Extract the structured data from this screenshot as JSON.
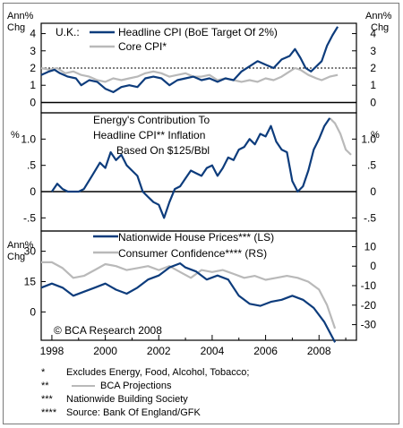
{
  "chart_data": [
    {
      "type": "line",
      "panel": "top",
      "title": "U.K.:",
      "ylabel_left": "Ann% Chg",
      "ylabel_right": "Ann% Chg",
      "ylim": [
        -0.6,
        4.6
      ],
      "yticks": [
        0,
        1,
        2,
        3,
        4
      ],
      "reference_line": {
        "y": 2,
        "style": "dotted"
      },
      "series": [
        {
          "name": "Headline CPI (BoE Target Of 2%)",
          "color": "#0d3c7c",
          "x": [
            1997.6,
            1997.9,
            1998.1,
            1998.3,
            1998.6,
            1998.9,
            1999.1,
            1999.4,
            1999.7,
            2000.0,
            2000.3,
            2000.6,
            2000.9,
            2001.2,
            2001.5,
            2001.8,
            2002.1,
            2002.4,
            2002.7,
            2003.0,
            2003.3,
            2003.6,
            2003.9,
            2004.2,
            2004.5,
            2004.8,
            2005.1,
            2005.4,
            2005.7,
            2006.0,
            2006.3,
            2006.6,
            2006.9,
            2007.1,
            2007.3,
            2007.5,
            2007.7,
            2007.9,
            2008.1,
            2008.3,
            2008.5,
            2008.7
          ],
          "y": [
            1.6,
            1.8,
            1.9,
            1.7,
            1.5,
            1.4,
            1.0,
            1.3,
            1.2,
            0.8,
            0.6,
            0.9,
            1.0,
            0.9,
            1.4,
            1.5,
            1.4,
            1.0,
            1.3,
            1.4,
            1.5,
            1.3,
            1.4,
            1.2,
            1.4,
            1.3,
            1.8,
            2.1,
            2.4,
            2.2,
            2.0,
            2.5,
            2.7,
            3.1,
            2.6,
            2.0,
            1.8,
            2.1,
            2.4,
            3.3,
            3.9,
            4.4
          ]
        },
        {
          "name": "Core CPI*",
          "color": "#b9b9b9",
          "x": [
            1997.6,
            1997.9,
            1998.2,
            1998.5,
            1998.8,
            1999.1,
            1999.4,
            1999.7,
            2000.0,
            2000.3,
            2000.6,
            2000.9,
            2001.2,
            2001.5,
            2001.8,
            2002.1,
            2002.4,
            2002.7,
            2003.0,
            2003.3,
            2003.6,
            2003.9,
            2004.2,
            2004.5,
            2004.8,
            2005.1,
            2005.4,
            2005.7,
            2006.0,
            2006.3,
            2006.6,
            2006.9,
            2007.1,
            2007.3,
            2007.6,
            2007.9,
            2008.1,
            2008.4,
            2008.7
          ],
          "y": [
            2.0,
            1.9,
            2.0,
            1.7,
            1.8,
            1.6,
            1.5,
            1.3,
            1.2,
            1.4,
            1.3,
            1.4,
            1.5,
            1.7,
            1.8,
            1.7,
            1.5,
            1.6,
            1.7,
            1.5,
            1.5,
            1.6,
            1.3,
            1.4,
            1.3,
            1.2,
            1.3,
            1.2,
            1.4,
            1.3,
            1.5,
            1.8,
            2.0,
            1.9,
            1.6,
            1.4,
            1.3,
            1.5,
            1.6
          ]
        }
      ]
    },
    {
      "type": "line",
      "panel": "middle",
      "title": "Energy's Contribution To Headline CPI** Inflation Based On $125/Bbl",
      "ylabel_left": "%",
      "ylabel_right": "%",
      "ylim": [
        -0.75,
        1.5
      ],
      "yticks": [
        -0.5,
        0,
        0.5,
        1.0
      ],
      "ytick_labels": [
        "-.5",
        "0",
        ".5",
        "1.0"
      ],
      "series": [
        {
          "name": "Energy contribution",
          "color": "#0d3c7c",
          "x": [
            1998.0,
            1998.2,
            1998.4,
            1998.6,
            1998.8,
            1999.0,
            1999.2,
            1999.5,
            1999.8,
            2000.0,
            2000.2,
            2000.4,
            2000.6,
            2000.8,
            2001.0,
            2001.2,
            2001.4,
            2001.6,
            2001.8,
            2002.0,
            2002.2,
            2002.4,
            2002.6,
            2002.8,
            2003.0,
            2003.2,
            2003.4,
            2003.6,
            2003.8,
            2004.0,
            2004.2,
            2004.4,
            2004.6,
            2004.8,
            2005.0,
            2005.2,
            2005.4,
            2005.6,
            2005.8,
            2006.0,
            2006.2,
            2006.4,
            2006.6,
            2006.8,
            2007.0,
            2007.2,
            2007.4,
            2007.6,
            2007.8,
            2008.0,
            2008.2,
            2008.4
          ],
          "y": [
            0.0,
            0.15,
            0.05,
            0.0,
            0.0,
            0.0,
            0.05,
            0.3,
            0.55,
            0.45,
            0.75,
            0.6,
            0.7,
            0.5,
            0.4,
            0.3,
            0.0,
            -0.1,
            -0.2,
            -0.25,
            -0.5,
            -0.2,
            0.05,
            0.1,
            0.25,
            0.4,
            0.35,
            0.3,
            0.45,
            0.5,
            0.3,
            0.45,
            0.65,
            0.6,
            0.8,
            0.85,
            1.0,
            0.9,
            1.1,
            1.05,
            1.25,
            0.95,
            0.8,
            0.75,
            0.2,
            0.0,
            0.1,
            0.4,
            0.8,
            1.0,
            1.25,
            1.4
          ]
        },
        {
          "name": "BCA Projections",
          "color": "#b9b9b9",
          "x": [
            2008.4,
            2008.6,
            2008.8,
            2009.0,
            2009.2
          ],
          "y": [
            1.4,
            1.3,
            1.1,
            0.8,
            0.7
          ]
        }
      ]
    },
    {
      "type": "line",
      "panel": "bottom",
      "ylabel_left": "Ann% Chg",
      "ylim_left": [
        -14,
        40
      ],
      "yticks_left": [
        0,
        15,
        30
      ],
      "ylim_right": [
        -38,
        18
      ],
      "yticks_right": [
        -30,
        -20,
        -10,
        0,
        10
      ],
      "x_ticks": [
        1998,
        2000,
        2002,
        2004,
        2006,
        2008
      ],
      "xlim": [
        1997.6,
        2009.4
      ],
      "annotation": "© BCA Research 2008",
      "series": [
        {
          "name": "Nationwide House Prices*** (LS)",
          "axis": "left",
          "color": "#0d3c7c",
          "x": [
            1997.6,
            1998.0,
            1998.4,
            1998.8,
            1999.2,
            1999.6,
            2000.0,
            2000.4,
            2000.8,
            2001.2,
            2001.6,
            2002.0,
            2002.4,
            2002.8,
            2003.0,
            2003.4,
            2003.8,
            2004.2,
            2004.6,
            2005.0,
            2005.4,
            2005.8,
            2006.2,
            2006.6,
            2007.0,
            2007.4,
            2007.8,
            2008.2,
            2008.6
          ],
          "y": [
            12,
            14,
            12,
            8,
            10,
            12,
            14,
            11,
            9,
            12,
            16,
            18,
            22,
            24,
            22,
            20,
            16,
            18,
            16,
            8,
            4,
            3,
            5,
            6,
            8,
            6,
            2,
            -5,
            -15
          ]
        },
        {
          "name": "Consumer Confidence**** (RS)",
          "axis": "right",
          "color": "#b9b9b9",
          "x": [
            1997.6,
            1998.0,
            1998.4,
            1998.8,
            1999.2,
            1999.6,
            2000.0,
            2000.4,
            2000.8,
            2001.2,
            2001.6,
            2002.0,
            2002.4,
            2002.8,
            2003.2,
            2003.6,
            2004.0,
            2004.4,
            2004.8,
            2005.2,
            2005.6,
            2006.0,
            2006.4,
            2006.8,
            2007.2,
            2007.6,
            2008.0,
            2008.3,
            2008.6
          ],
          "y": [
            2,
            2,
            -1,
            -6,
            -5,
            -2,
            1,
            0,
            -2,
            -1,
            0,
            -2,
            0,
            -3,
            -6,
            -2,
            -3,
            -2,
            -4,
            -6,
            -5,
            -7,
            -6,
            -5,
            -6,
            -8,
            -12,
            -20,
            -32
          ]
        }
      ]
    }
  ],
  "legend": {
    "headline_cpi": "Headline CPI (BoE Target Of 2%)",
    "core_cpi": "Core CPI*",
    "house_prices": "Nationwide House Prices*** (LS)",
    "consumer_conf": "Consumer Confidence**** (RS)"
  },
  "labels": {
    "uk": "U.K.:",
    "top_left_ylabel_1": "Ann%",
    "top_left_ylabel_2": "Chg",
    "top_right_ylabel_1": "Ann%",
    "top_right_ylabel_2": "Chg",
    "mid_left_ylabel": "%",
    "mid_right_ylabel": "%",
    "mid_title_1": "Energy's Contribution To",
    "mid_title_2": "Headline CPI** Inflation",
    "mid_title_3": "Based On $125/Bbl",
    "bot_left_ylabel_1": "Ann%",
    "bot_left_ylabel_2": "Chg",
    "copyright": "© BCA Research 2008"
  },
  "ticks": {
    "top_left": [
      "0",
      "1",
      "2",
      "3",
      "4"
    ],
    "top_right": [
      "0",
      "1",
      "2",
      "3",
      "4"
    ],
    "mid_left": [
      "-.5",
      "0",
      ".5",
      "1.0"
    ],
    "mid_right": [
      "-.5",
      "0",
      ".5",
      "1.0"
    ],
    "bot_left": [
      "0",
      "15",
      "30"
    ],
    "bot_right": [
      "-30",
      "-20",
      "-10",
      "0",
      "10"
    ],
    "x": [
      "1998",
      "2000",
      "2002",
      "2004",
      "2006",
      "2008"
    ]
  },
  "footnotes": {
    "f1_mark": "*",
    "f1_text": "Excludes Energy, Food, Alcohol, Tobacco;",
    "f2_mark": "**",
    "f2_text": "BCA Projections",
    "f3_mark": "***",
    "f3_text": "Nationwide Building Society",
    "f4_mark": "****",
    "f4_text": "Source: Bank Of England/GFK"
  }
}
